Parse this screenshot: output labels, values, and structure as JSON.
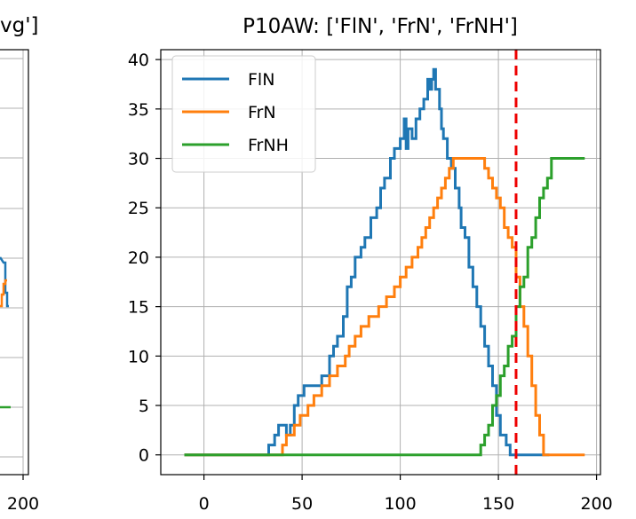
{
  "left_panel": {
    "title_fragment": "vg']",
    "x_tick_fragment": "200",
    "series_colors": [
      "#1f77b4",
      "#ff7f0e",
      "#2ca02c"
    ]
  },
  "chart_data": {
    "type": "line",
    "title": "P10AW: ['FlN', 'FrN', 'FrNH']",
    "xlabel": "",
    "ylabel": "",
    "xlim": [
      -22,
      202
    ],
    "ylim": [
      -2,
      41
    ],
    "x_ticks": [
      0,
      50,
      100,
      150,
      200
    ],
    "y_ticks": [
      0,
      5,
      10,
      15,
      20,
      25,
      30,
      35,
      40
    ],
    "grid": true,
    "legend_position": "top-left",
    "vline": {
      "x": 159,
      "color": "#ee0000",
      "style": "dashed"
    },
    "series": [
      {
        "name": "FlN",
        "color": "#1f77b4",
        "points": [
          [
            -10,
            0
          ],
          [
            33,
            0
          ],
          [
            33,
            1
          ],
          [
            36,
            1
          ],
          [
            36,
            2
          ],
          [
            38,
            2
          ],
          [
            38,
            3
          ],
          [
            42,
            3
          ],
          [
            42,
            2
          ],
          [
            44,
            2
          ],
          [
            44,
            3
          ],
          [
            46,
            3
          ],
          [
            46,
            5
          ],
          [
            48,
            5
          ],
          [
            48,
            6
          ],
          [
            51,
            6
          ],
          [
            51,
            7
          ],
          [
            60,
            7
          ],
          [
            60,
            8
          ],
          [
            64,
            8
          ],
          [
            64,
            10
          ],
          [
            66,
            10
          ],
          [
            66,
            11
          ],
          [
            68,
            11
          ],
          [
            68,
            12
          ],
          [
            71,
            12
          ],
          [
            71,
            14
          ],
          [
            73,
            14
          ],
          [
            73,
            17
          ],
          [
            75,
            17
          ],
          [
            75,
            18
          ],
          [
            77,
            18
          ],
          [
            77,
            20
          ],
          [
            80,
            20
          ],
          [
            80,
            21
          ],
          [
            82,
            21
          ],
          [
            82,
            22
          ],
          [
            85,
            22
          ],
          [
            85,
            24
          ],
          [
            88,
            24
          ],
          [
            88,
            25
          ],
          [
            90,
            25
          ],
          [
            90,
            27
          ],
          [
            92,
            27
          ],
          [
            92,
            28
          ],
          [
            95,
            28
          ],
          [
            95,
            30
          ],
          [
            97,
            30
          ],
          [
            97,
            31
          ],
          [
            100,
            31
          ],
          [
            100,
            32
          ],
          [
            102,
            32
          ],
          [
            102,
            34
          ],
          [
            103,
            34
          ],
          [
            103,
            31
          ],
          [
            104,
            31
          ],
          [
            104,
            33
          ],
          [
            106,
            33
          ],
          [
            106,
            32
          ],
          [
            108,
            32
          ],
          [
            108,
            34
          ],
          [
            110,
            34
          ],
          [
            110,
            35
          ],
          [
            112,
            35
          ],
          [
            112,
            36
          ],
          [
            114,
            36
          ],
          [
            114,
            38
          ],
          [
            115,
            38
          ],
          [
            115,
            37
          ],
          [
            116,
            37
          ],
          [
            116,
            38
          ],
          [
            117,
            38
          ],
          [
            117,
            39
          ],
          [
            118,
            39
          ],
          [
            118,
            37
          ],
          [
            120,
            37
          ],
          [
            120,
            35
          ],
          [
            121,
            35
          ],
          [
            121,
            33
          ],
          [
            122,
            33
          ],
          [
            122,
            32
          ],
          [
            124,
            32
          ],
          [
            124,
            30
          ],
          [
            126,
            30
          ],
          [
            126,
            29
          ],
          [
            128,
            29
          ],
          [
            128,
            27
          ],
          [
            130,
            27
          ],
          [
            130,
            25
          ],
          [
            131,
            25
          ],
          [
            131,
            23
          ],
          [
            133,
            23
          ],
          [
            133,
            22
          ],
          [
            135,
            22
          ],
          [
            135,
            19
          ],
          [
            137,
            19
          ],
          [
            137,
            17
          ],
          [
            139,
            17
          ],
          [
            139,
            15
          ],
          [
            141,
            15
          ],
          [
            141,
            13
          ],
          [
            143,
            13
          ],
          [
            143,
            11
          ],
          [
            145,
            11
          ],
          [
            145,
            9
          ],
          [
            147,
            9
          ],
          [
            147,
            7
          ],
          [
            149,
            7
          ],
          [
            149,
            4
          ],
          [
            151,
            4
          ],
          [
            151,
            2
          ],
          [
            154,
            2
          ],
          [
            154,
            1
          ],
          [
            156,
            1
          ],
          [
            156,
            0
          ],
          [
            176,
            0
          ]
        ]
      },
      {
        "name": "FrN",
        "color": "#ff7f0e",
        "points": [
          [
            -10,
            0
          ],
          [
            40,
            0
          ],
          [
            40,
            1
          ],
          [
            42,
            1
          ],
          [
            42,
            2
          ],
          [
            46,
            2
          ],
          [
            46,
            3
          ],
          [
            49,
            3
          ],
          [
            49,
            4
          ],
          [
            53,
            4
          ],
          [
            53,
            5
          ],
          [
            56,
            5
          ],
          [
            56,
            6
          ],
          [
            60,
            6
          ],
          [
            60,
            7
          ],
          [
            64,
            7
          ],
          [
            64,
            8
          ],
          [
            68,
            8
          ],
          [
            68,
            9
          ],
          [
            72,
            9
          ],
          [
            72,
            10
          ],
          [
            74,
            10
          ],
          [
            74,
            11
          ],
          [
            77,
            11
          ],
          [
            77,
            12
          ],
          [
            80,
            12
          ],
          [
            80,
            13
          ],
          [
            84,
            13
          ],
          [
            84,
            14
          ],
          [
            89,
            14
          ],
          [
            89,
            15
          ],
          [
            93,
            15
          ],
          [
            93,
            16
          ],
          [
            97,
            16
          ],
          [
            97,
            17
          ],
          [
            100,
            17
          ],
          [
            100,
            18
          ],
          [
            103,
            18
          ],
          [
            103,
            19
          ],
          [
            106,
            19
          ],
          [
            106,
            20
          ],
          [
            109,
            20
          ],
          [
            109,
            21
          ],
          [
            111,
            21
          ],
          [
            111,
            22
          ],
          [
            113,
            22
          ],
          [
            113,
            23
          ],
          [
            115,
            23
          ],
          [
            115,
            24
          ],
          [
            117,
            24
          ],
          [
            117,
            25
          ],
          [
            119,
            25
          ],
          [
            119,
            26
          ],
          [
            121,
            26
          ],
          [
            121,
            27
          ],
          [
            123,
            27
          ],
          [
            123,
            28
          ],
          [
            125,
            28
          ],
          [
            125,
            29
          ],
          [
            127,
            29
          ],
          [
            127,
            30
          ],
          [
            143,
            30
          ],
          [
            143,
            29
          ],
          [
            145,
            29
          ],
          [
            145,
            28
          ],
          [
            147,
            28
          ],
          [
            147,
            27
          ],
          [
            149,
            27
          ],
          [
            149,
            26
          ],
          [
            151,
            26
          ],
          [
            151,
            25
          ],
          [
            153,
            25
          ],
          [
            153,
            23
          ],
          [
            155,
            23
          ],
          [
            155,
            22
          ],
          [
            157,
            22
          ],
          [
            157,
            21
          ],
          [
            159,
            21
          ],
          [
            159,
            18
          ],
          [
            161,
            18
          ],
          [
            161,
            15
          ],
          [
            163,
            15
          ],
          [
            163,
            13
          ],
          [
            165,
            13
          ],
          [
            165,
            10
          ],
          [
            167,
            10
          ],
          [
            167,
            7
          ],
          [
            169,
            7
          ],
          [
            169,
            4
          ],
          [
            171,
            4
          ],
          [
            171,
            2
          ],
          [
            173,
            2
          ],
          [
            173,
            0
          ],
          [
            194,
            0
          ]
        ]
      },
      {
        "name": "FrNH",
        "color": "#2ca02c",
        "points": [
          [
            -10,
            0
          ],
          [
            141,
            0
          ],
          [
            141,
            1
          ],
          [
            143,
            1
          ],
          [
            143,
            2
          ],
          [
            145,
            2
          ],
          [
            145,
            3
          ],
          [
            147,
            3
          ],
          [
            147,
            5
          ],
          [
            149,
            5
          ],
          [
            149,
            6
          ],
          [
            151,
            6
          ],
          [
            151,
            8
          ],
          [
            153,
            8
          ],
          [
            153,
            9
          ],
          [
            155,
            9
          ],
          [
            155,
            11
          ],
          [
            157,
            11
          ],
          [
            157,
            12
          ],
          [
            159,
            12
          ],
          [
            159,
            15
          ],
          [
            161,
            15
          ],
          [
            161,
            17
          ],
          [
            163,
            17
          ],
          [
            163,
            18
          ],
          [
            165,
            18
          ],
          [
            165,
            21
          ],
          [
            167,
            21
          ],
          [
            167,
            22
          ],
          [
            169,
            22
          ],
          [
            169,
            24
          ],
          [
            171,
            24
          ],
          [
            171,
            26
          ],
          [
            173,
            26
          ],
          [
            173,
            27
          ],
          [
            175,
            27
          ],
          [
            175,
            28
          ],
          [
            177,
            28
          ],
          [
            177,
            30
          ],
          [
            194,
            30
          ]
        ]
      }
    ]
  }
}
